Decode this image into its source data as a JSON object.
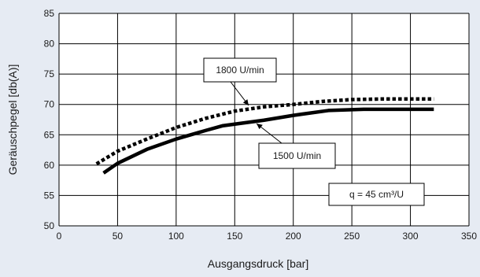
{
  "chart_data": {
    "type": "line",
    "xlabel": "Ausgangsdruck [bar]",
    "ylabel": "Geräuschpegel [db(A)]",
    "xlim": [
      0,
      350
    ],
    "ylim": [
      50,
      85
    ],
    "xticks": [
      0,
      50,
      100,
      150,
      200,
      250,
      300,
      350
    ],
    "yticks": [
      50,
      55,
      60,
      65,
      70,
      75,
      80,
      85
    ],
    "grid": true,
    "annotation": "q = 45 cm³/U",
    "series": [
      {
        "name": "1800 U/min",
        "style": "dotted",
        "color": "#000000",
        "x": [
          32,
          50,
          75,
          100,
          125,
          150,
          175,
          200,
          225,
          250,
          275,
          300,
          320
        ],
        "y": [
          60.2,
          62.3,
          64.3,
          66.2,
          67.7,
          68.9,
          69.6,
          70.0,
          70.5,
          70.8,
          70.9,
          70.9,
          70.9
        ]
      },
      {
        "name": "1500 U/min",
        "style": "solid",
        "color": "#000000",
        "x": [
          38,
          50,
          75,
          100,
          125,
          140,
          175,
          200,
          230,
          260,
          290,
          320
        ],
        "y": [
          58.7,
          60.3,
          62.6,
          64.3,
          65.7,
          66.5,
          67.4,
          68.2,
          69.0,
          69.2,
          69.2,
          69.2
        ]
      }
    ]
  }
}
